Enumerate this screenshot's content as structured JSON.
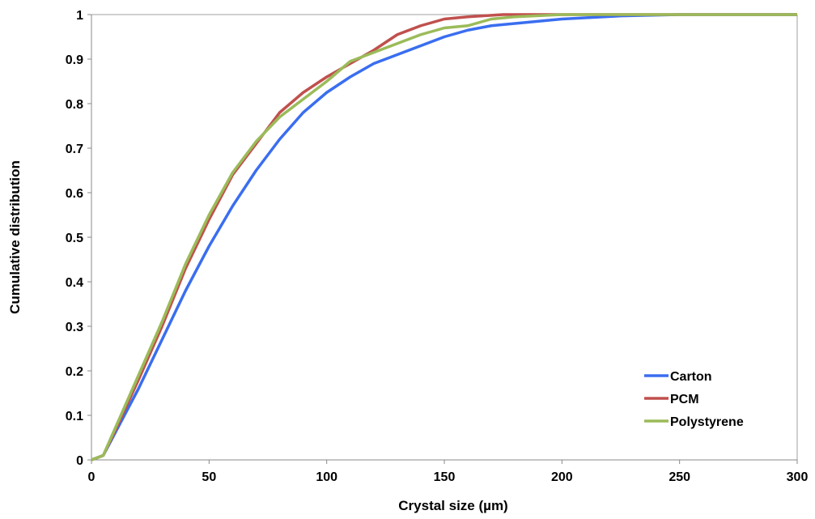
{
  "chart_data": {
    "type": "line",
    "xlabel": "Crystal size (µm)",
    "ylabel": "Cumulative distribution",
    "xlim": [
      0,
      300
    ],
    "xticks": [
      0,
      50,
      100,
      150,
      200,
      250,
      300
    ],
    "ylim": [
      0,
      1
    ],
    "yticks": [
      0,
      0.1,
      0.2,
      0.3,
      0.4,
      0.5,
      0.6,
      0.7,
      0.8,
      0.9,
      1
    ],
    "grid": false,
    "legend": "lower right",
    "series": [
      {
        "name": "Carton",
        "color": "#3a6ef0",
        "x": [
          0,
          5,
          10,
          20,
          30,
          40,
          50,
          60,
          70,
          80,
          90,
          100,
          110,
          120,
          130,
          140,
          150,
          160,
          170,
          180,
          190,
          200,
          225,
          250,
          300
        ],
        "values": [
          0,
          0.01,
          0.06,
          0.16,
          0.27,
          0.38,
          0.48,
          0.57,
          0.65,
          0.72,
          0.78,
          0.825,
          0.86,
          0.89,
          0.91,
          0.93,
          0.95,
          0.965,
          0.975,
          0.98,
          0.985,
          0.99,
          0.997,
          1,
          1
        ]
      },
      {
        "name": "PCM",
        "color": "#c0504d",
        "x": [
          0,
          5,
          10,
          20,
          30,
          40,
          50,
          60,
          70,
          80,
          90,
          100,
          110,
          120,
          130,
          140,
          150,
          160,
          175,
          200,
          300
        ],
        "values": [
          0,
          0.01,
          0.065,
          0.18,
          0.3,
          0.43,
          0.54,
          0.64,
          0.71,
          0.78,
          0.825,
          0.86,
          0.89,
          0.92,
          0.955,
          0.975,
          0.99,
          0.995,
          1,
          1,
          1
        ]
      },
      {
        "name": "Polystyrene",
        "color": "#9bbb59",
        "x": [
          0,
          5,
          10,
          20,
          30,
          40,
          50,
          60,
          70,
          80,
          90,
          100,
          110,
          120,
          130,
          140,
          150,
          160,
          170,
          180,
          200,
          300
        ],
        "values": [
          0,
          0.01,
          0.07,
          0.19,
          0.31,
          0.44,
          0.55,
          0.645,
          0.715,
          0.77,
          0.81,
          0.85,
          0.895,
          0.915,
          0.935,
          0.955,
          0.97,
          0.975,
          0.99,
          0.995,
          1,
          1
        ]
      }
    ]
  }
}
